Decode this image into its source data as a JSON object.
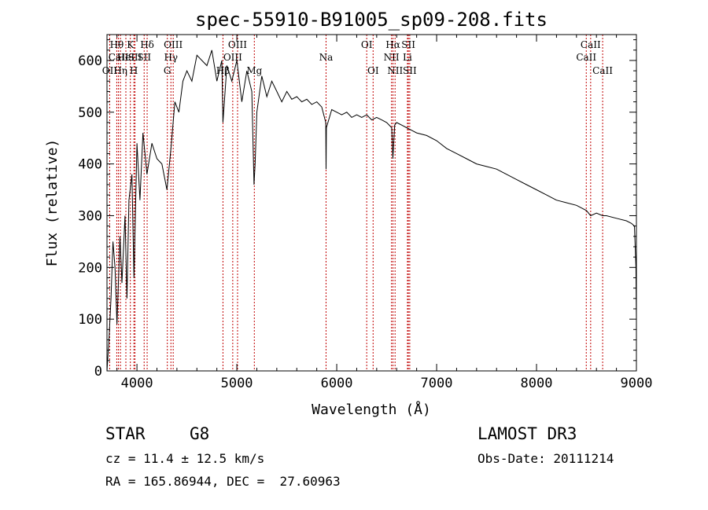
{
  "chart_data": {
    "type": "line",
    "title": "spec-55910-B91005_sp09-208.fits",
    "xlabel": "Wavelength (Å)",
    "ylabel": "Flux (relative)",
    "xlim": [
      3700,
      9000
    ],
    "ylim": [
      0,
      650
    ],
    "xticks": [
      4000,
      5000,
      6000,
      7000,
      8000,
      9000
    ],
    "yticks": [
      0,
      100,
      200,
      300,
      400,
      500,
      600
    ],
    "series": [
      {
        "name": "flux",
        "x": [
          3700,
          3720,
          3740,
          3760,
          3780,
          3800,
          3830,
          3850,
          3880,
          3900,
          3920,
          3950,
          3970,
          4000,
          4030,
          4060,
          4080,
          4100,
          4150,
          4200,
          4250,
          4300,
          4340,
          4380,
          4420,
          4460,
          4500,
          4550,
          4600,
          4650,
          4700,
          4750,
          4800,
          4850,
          4861,
          4900,
          4950,
          5000,
          5050,
          5100,
          5150,
          5172,
          5183,
          5200,
          5250,
          5300,
          5350,
          5400,
          5450,
          5500,
          5550,
          5600,
          5650,
          5700,
          5750,
          5800,
          5850,
          5890,
          5893,
          5896,
          5950,
          6000,
          6050,
          6100,
          6150,
          6200,
          6250,
          6300,
          6350,
          6400,
          6450,
          6500,
          6550,
          6562,
          6580,
          6600,
          6650,
          6700,
          6750,
          6800,
          6900,
          7000,
          7100,
          7200,
          7300,
          7400,
          7500,
          7600,
          7700,
          7800,
          7900,
          8000,
          8100,
          8200,
          8300,
          8400,
          8500,
          8542,
          8600,
          8662,
          8700,
          8800,
          8900,
          8950,
          8980,
          8995,
          9000
        ],
        "values": [
          0,
          60,
          140,
          250,
          200,
          90,
          260,
          170,
          300,
          140,
          330,
          380,
          180,
          440,
          330,
          460,
          420,
          380,
          440,
          410,
          400,
          350,
          430,
          520,
          500,
          560,
          580,
          560,
          610,
          600,
          590,
          620,
          560,
          600,
          480,
          590,
          560,
          600,
          520,
          580,
          540,
          360,
          400,
          500,
          570,
          530,
          560,
          540,
          520,
          540,
          525,
          530,
          520,
          525,
          515,
          520,
          510,
          480,
          390,
          470,
          505,
          500,
          495,
          500,
          490,
          495,
          490,
          495,
          485,
          490,
          485,
          480,
          470,
          410,
          475,
          480,
          475,
          470,
          465,
          460,
          455,
          445,
          430,
          420,
          410,
          400,
          395,
          390,
          380,
          370,
          360,
          350,
          340,
          330,
          325,
          320,
          310,
          300,
          305,
          300,
          300,
          295,
          290,
          285,
          280,
          200,
          100
        ]
      }
    ],
    "lines": [
      {
        "label": "Hθ",
        "x": 3798,
        "row": 1
      },
      {
        "label": "CaII",
        "x": 3815,
        "row": 2
      },
      {
        "label": "OII",
        "x": 3727,
        "row": 3
      },
      {
        "label": "Hη",
        "x": 3835,
        "row": 3
      },
      {
        "label": "K",
        "x": 3934,
        "row": 1
      },
      {
        "label": "HeI",
        "x": 3889,
        "row": 2
      },
      {
        "label": "SII",
        "x": 3980,
        "row": 2
      },
      {
        "label": "H",
        "x": 3969,
        "row": 3
      },
      {
        "label": "Hδ",
        "x": 4102,
        "row": 1
      },
      {
        "label": "SII",
        "x": 4072,
        "row": 2
      },
      {
        "label": "OIII",
        "x": 4363,
        "row": 1
      },
      {
        "label": "Hγ",
        "x": 4340,
        "row": 2
      },
      {
        "label": "G",
        "x": 4304,
        "row": 3
      },
      {
        "label": "OIII",
        "x": 5007,
        "row": 1
      },
      {
        "label": "OIII",
        "x": 4959,
        "row": 2
      },
      {
        "label": "Hβ",
        "x": 4861,
        "row": 3
      },
      {
        "label": "Mg",
        "x": 5175,
        "row": 3
      },
      {
        "label": "Na",
        "x": 5893,
        "row": 2
      },
      {
        "label": "OI",
        "x": 6300,
        "row": 1
      },
      {
        "label": "OI",
        "x": 6364,
        "row": 3
      },
      {
        "label": "Hα",
        "x": 6563,
        "row": 1
      },
      {
        "label": "NII",
        "x": 6548,
        "row": 2
      },
      {
        "label": "NII",
        "x": 6584,
        "row": 3
      },
      {
        "label": "SII",
        "x": 6717,
        "row": 1
      },
      {
        "label": "Li",
        "x": 6708,
        "row": 2
      },
      {
        "label": "SII",
        "x": 6731,
        "row": 3
      },
      {
        "label": "CaII",
        "x": 8542,
        "row": 1
      },
      {
        "label": "CaII",
        "x": 8498,
        "row": 2
      },
      {
        "label": "CaII",
        "x": 8662,
        "row": 3
      }
    ]
  },
  "info": {
    "class": "STAR",
    "subclass": "G8",
    "survey": "LAMOST DR3",
    "cz": "cz = 11.4 ± 12.5 km/s",
    "obs_date": "Obs-Date: 20111214",
    "coords": "RA = 165.86944, DEC =  27.60963"
  },
  "colors": {
    "spectrum": "#000000",
    "line_marker": "#c00000",
    "background": "#ffffff"
  }
}
